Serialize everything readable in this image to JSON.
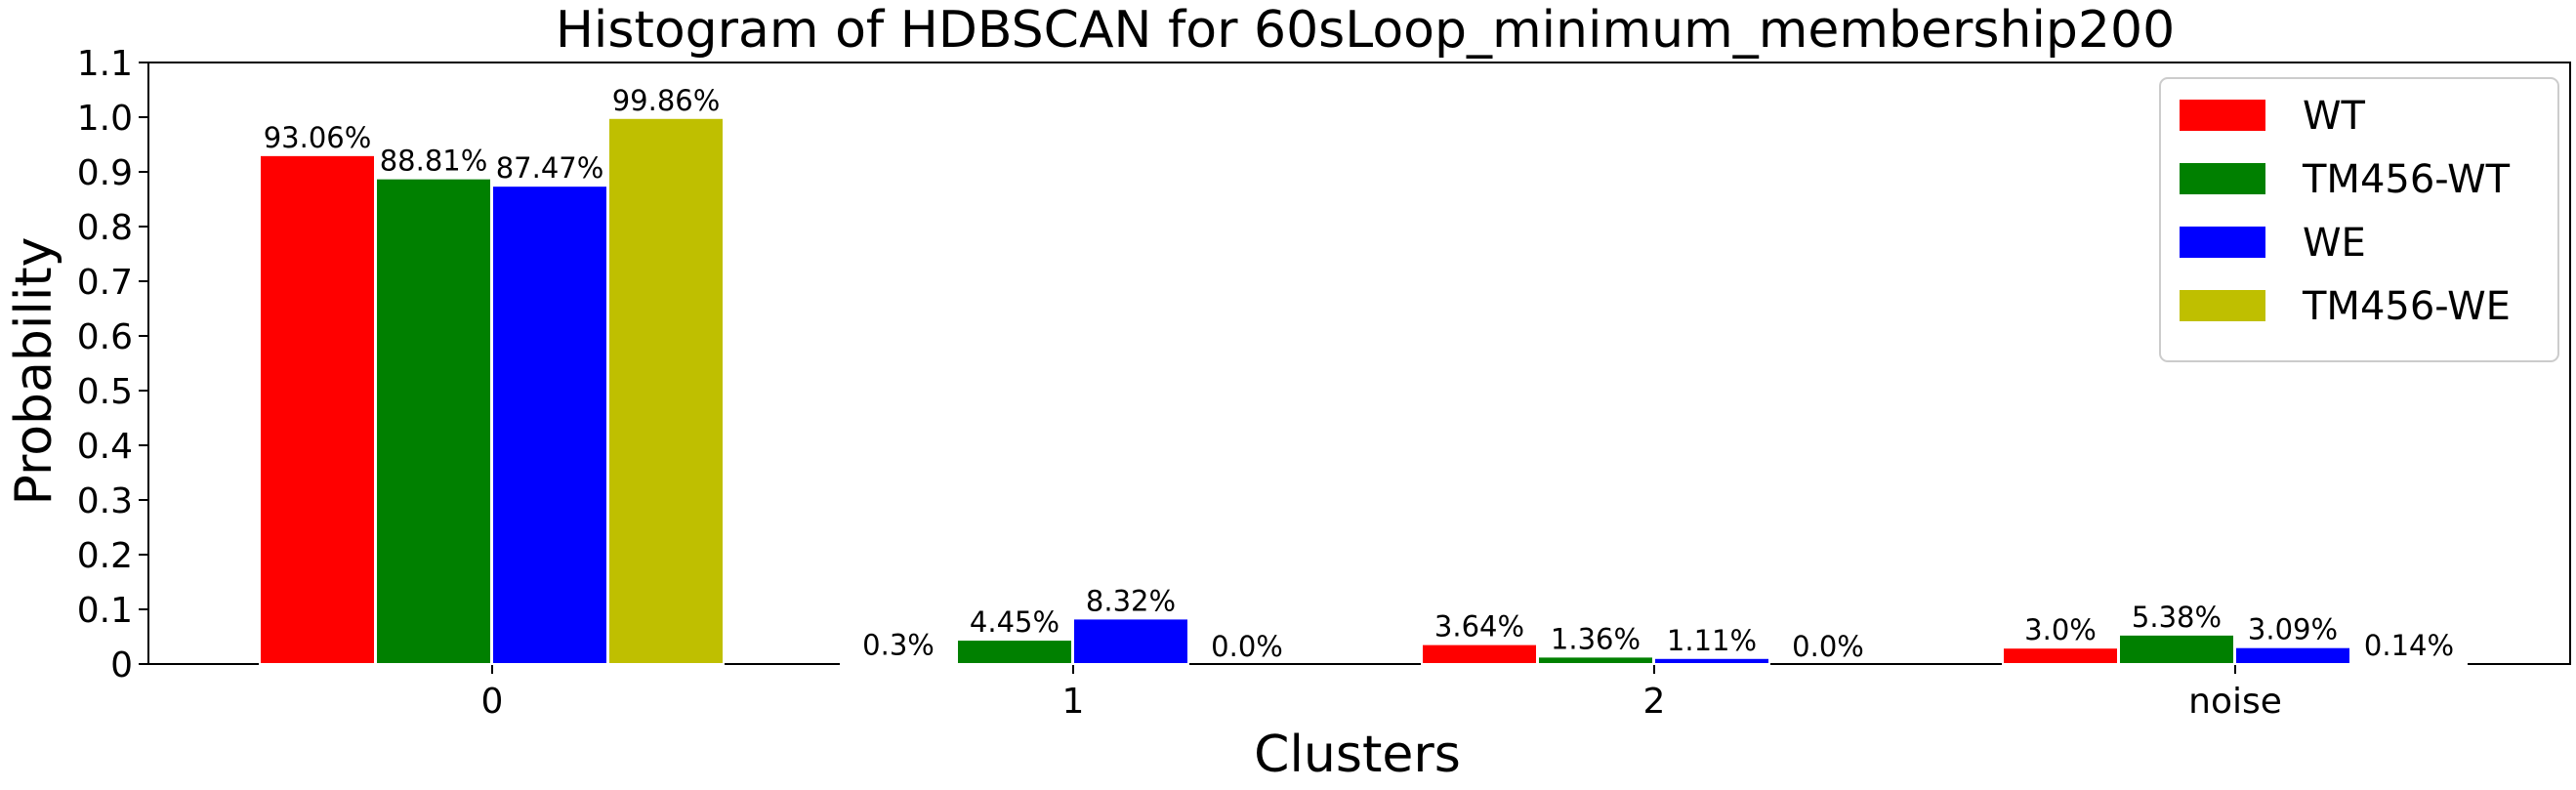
{
  "chart_data": {
    "type": "bar",
    "title": "Histogram of HDBSCAN for 60sLoop_minimum_membership200",
    "xlabel": "Clusters",
    "ylabel": "Probability",
    "categories": [
      "0",
      "1",
      "2",
      "noise"
    ],
    "ylim": [
      0,
      1.1
    ],
    "yticks": [
      "0",
      "0.1",
      "0.2",
      "0.3",
      "0.4",
      "0.5",
      "0.6",
      "0.7",
      "0.8",
      "0.9",
      "1.0",
      "1.1"
    ],
    "grid": false,
    "legend_position": "top-right",
    "series": [
      {
        "name": "WT",
        "color": "#ff0000",
        "values": [
          0.9306,
          0.003,
          0.0364,
          0.03
        ],
        "labels": [
          "93.06%",
          "0.3%",
          "3.64%",
          "3.0%"
        ]
      },
      {
        "name": "TM456-WT",
        "color": "#008000",
        "values": [
          0.8881,
          0.0445,
          0.0136,
          0.0538
        ],
        "labels": [
          "88.81%",
          "4.45%",
          "1.36%",
          "5.38%"
        ]
      },
      {
        "name": "WE",
        "color": "#0000ff",
        "values": [
          0.8747,
          0.0832,
          0.0111,
          0.0309
        ],
        "labels": [
          "87.47%",
          "8.32%",
          "1.11%",
          "3.09%"
        ]
      },
      {
        "name": "TM456-WE",
        "color": "#bfbf00",
        "values": [
          0.9986,
          0.0,
          0.0,
          0.0014
        ],
        "labels": [
          "99.86%",
          "0.0%",
          "0.0%",
          "0.14%"
        ]
      }
    ]
  }
}
